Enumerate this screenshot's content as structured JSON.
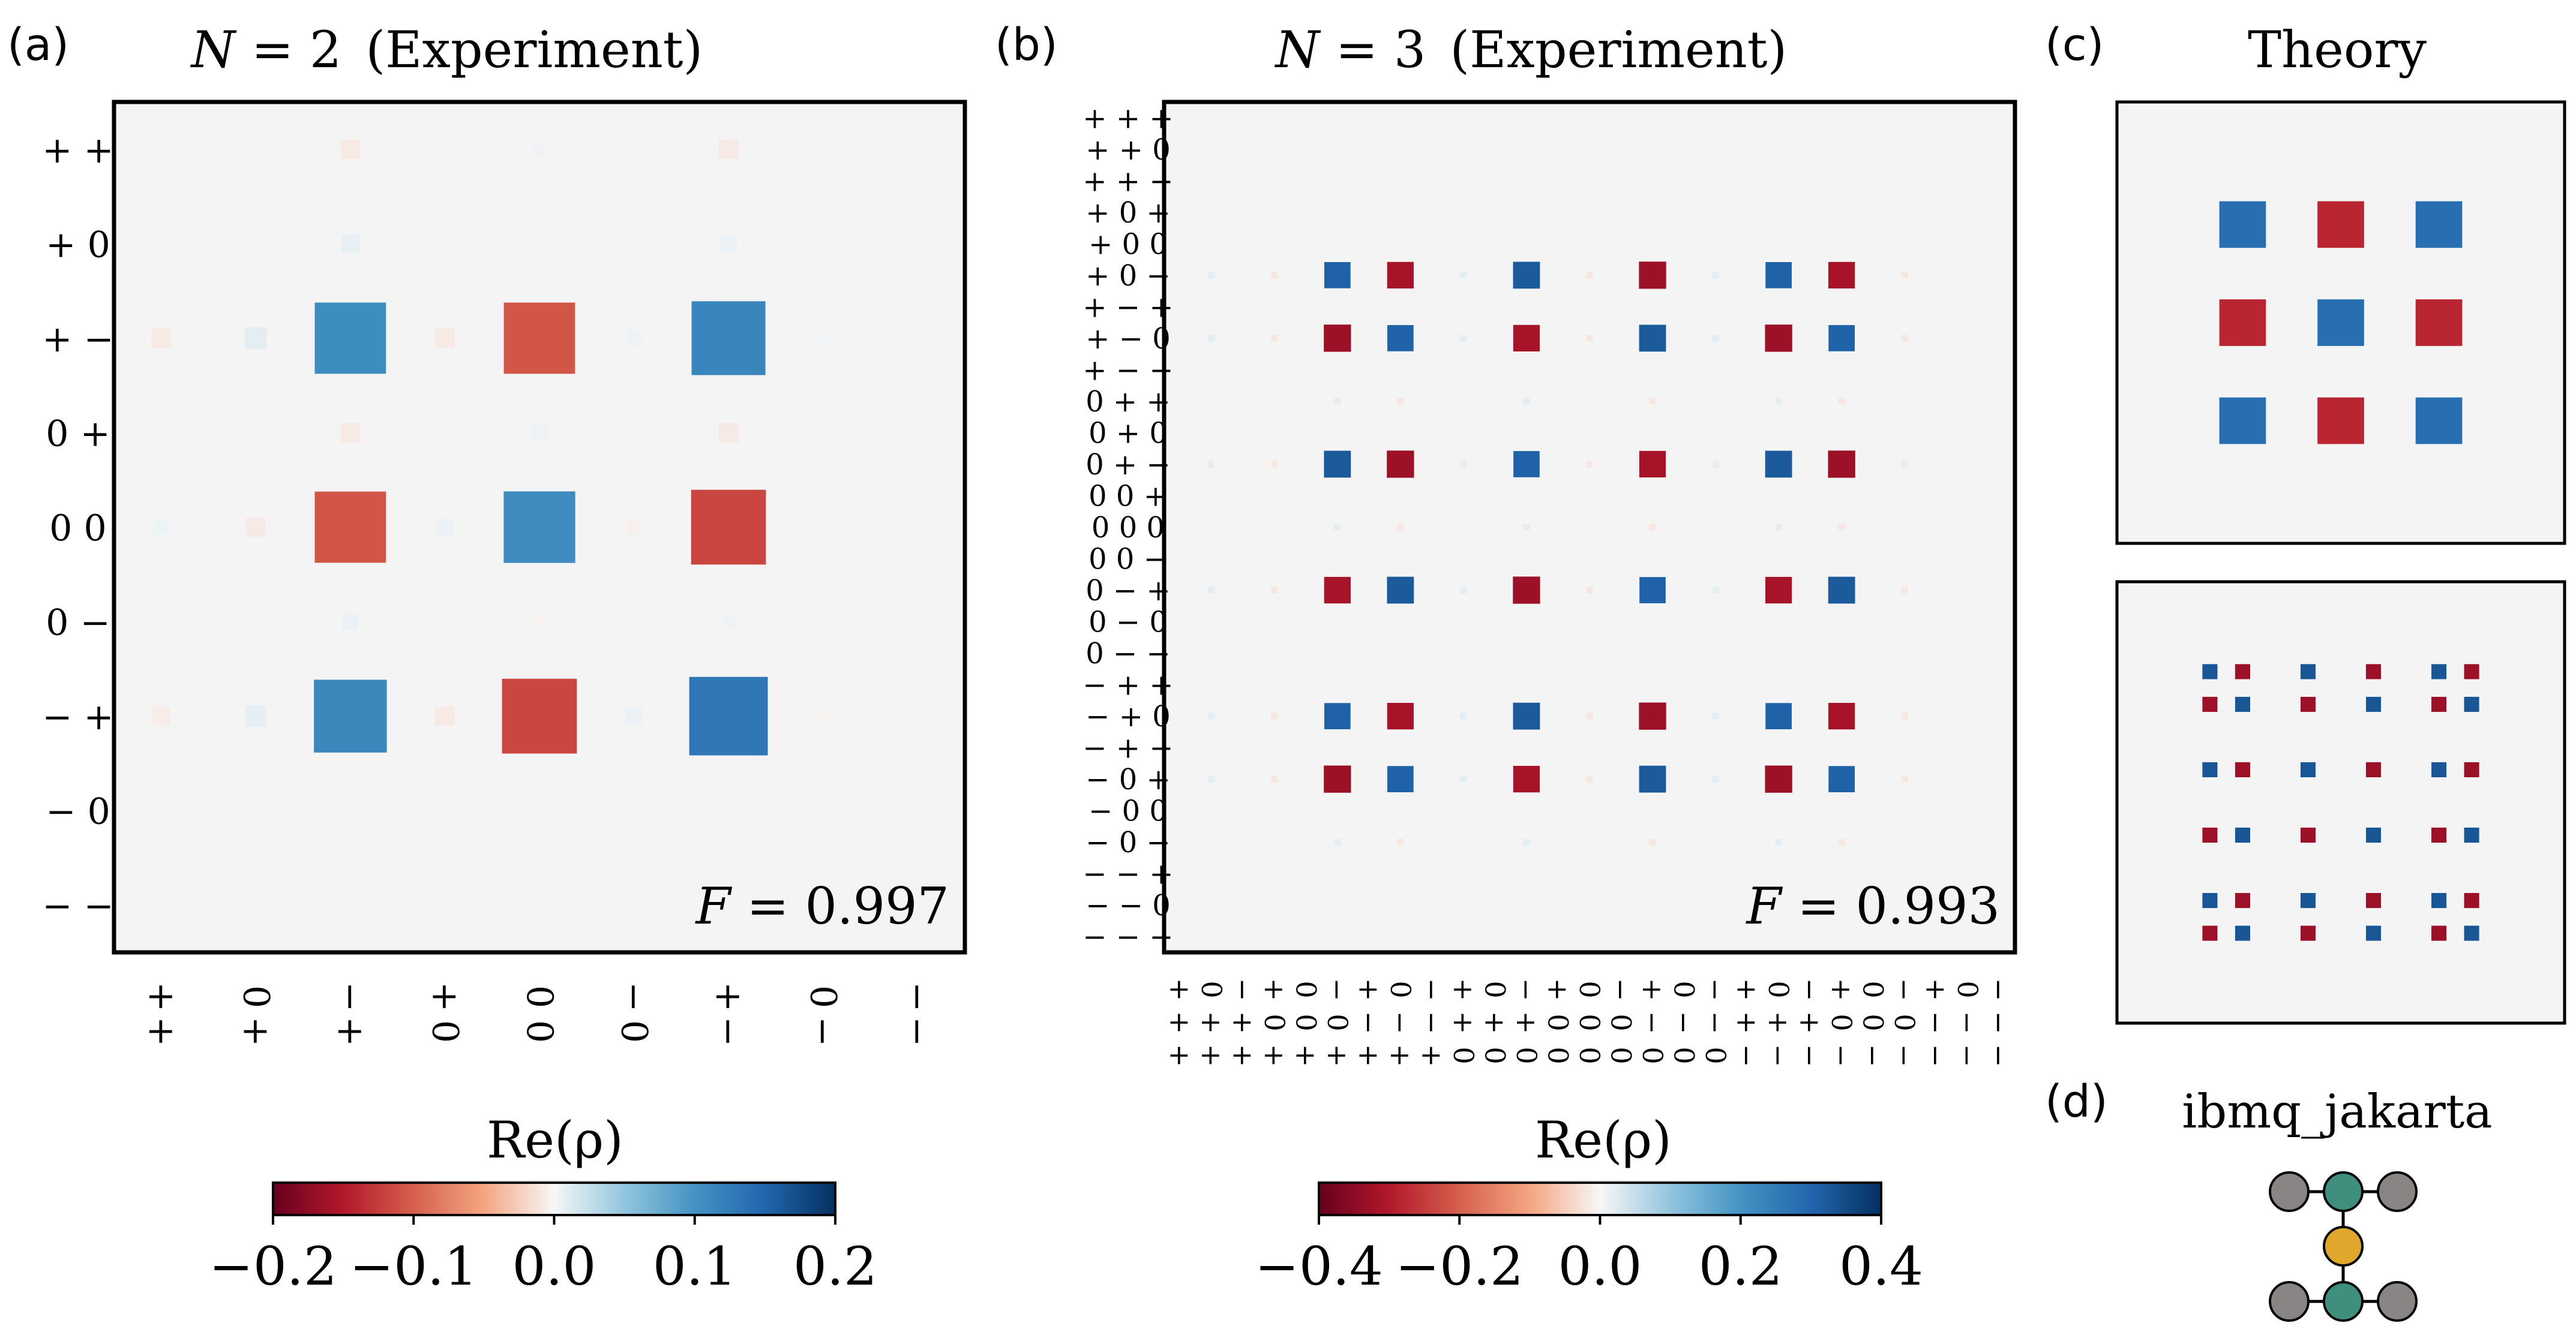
{
  "chart_data": [
    {
      "panel": "(a)",
      "type": "heatmap",
      "title_var": "N",
      "title_eq": " = 2",
      "title_note": "(Experiment)",
      "basis_labels": [
        "+ +",
        "+ 0",
        "+ −",
        "0 +",
        "0 0",
        "0 −",
        "− +",
        "− 0",
        "− −"
      ],
      "x_tick_labels": [
        [
          "+",
          "+"
        ],
        [
          "0",
          "+"
        ],
        [
          "−",
          "+"
        ],
        [
          "+",
          "0"
        ],
        [
          "0",
          "0"
        ],
        [
          "−",
          "0"
        ],
        [
          "+",
          "−"
        ],
        [
          "0",
          "−"
        ],
        [
          "−",
          "−"
        ]
      ],
      "fidelity_var": "F",
      "fidelity_text": " = 0.997",
      "value_range": [
        -0.2,
        0.2
      ],
      "matrix_elements": [
        {
          "row": 2,
          "col": 2,
          "value": 0.107
        },
        {
          "row": 2,
          "col": 4,
          "value": -0.107
        },
        {
          "row": 2,
          "col": 6,
          "value": 0.115
        },
        {
          "row": 4,
          "col": 2,
          "value": -0.107
        },
        {
          "row": 4,
          "col": 4,
          "value": 0.108
        },
        {
          "row": 4,
          "col": 6,
          "value": -0.118
        },
        {
          "row": 6,
          "col": 2,
          "value": 0.112
        },
        {
          "row": 6,
          "col": 4,
          "value": -0.118
        },
        {
          "row": 6,
          "col": 6,
          "value": 0.13
        },
        {
          "row": 0,
          "col": 2,
          "value": -0.008
        },
        {
          "row": 0,
          "col": 4,
          "value": 0.004
        },
        {
          "row": 0,
          "col": 6,
          "value": -0.008
        },
        {
          "row": 1,
          "col": 2,
          "value": 0.007
        },
        {
          "row": 1,
          "col": 6,
          "value": 0.006
        },
        {
          "row": 2,
          "col": 0,
          "value": -0.008
        },
        {
          "row": 2,
          "col": 1,
          "value": 0.01
        },
        {
          "row": 2,
          "col": 3,
          "value": -0.008
        },
        {
          "row": 2,
          "col": 5,
          "value": 0.005
        },
        {
          "row": 2,
          "col": 7,
          "value": 0.003
        },
        {
          "row": 3,
          "col": 2,
          "value": -0.008
        },
        {
          "row": 3,
          "col": 4,
          "value": 0.005
        },
        {
          "row": 3,
          "col": 6,
          "value": -0.008
        },
        {
          "row": 4,
          "col": 0,
          "value": 0.005
        },
        {
          "row": 4,
          "col": 1,
          "value": -0.008
        },
        {
          "row": 4,
          "col": 3,
          "value": 0.006
        },
        {
          "row": 4,
          "col": 5,
          "value": -0.004
        },
        {
          "row": 5,
          "col": 2,
          "value": 0.006
        },
        {
          "row": 5,
          "col": 4,
          "value": -0.003
        },
        {
          "row": 5,
          "col": 6,
          "value": 0.004
        },
        {
          "row": 6,
          "col": 0,
          "value": -0.007
        },
        {
          "row": 6,
          "col": 1,
          "value": 0.009
        },
        {
          "row": 6,
          "col": 3,
          "value": -0.008
        },
        {
          "row": 6,
          "col": 5,
          "value": 0.006
        },
        {
          "row": 6,
          "col": 7,
          "value": -0.003
        }
      ]
    },
    {
      "panel": "(b)",
      "type": "heatmap",
      "title_var": "N",
      "title_eq": " = 3",
      "title_note": "(Experiment)",
      "basis_labels": [
        "+ + +",
        "+ + 0",
        "+ + −",
        "+ 0 +",
        "+ 0 0",
        "+ 0 −",
        "+ − +",
        "+ − 0",
        "+ − −",
        "0 + +",
        "0 + 0",
        "0 + −",
        "0 0 +",
        "0 0 0",
        "0 0 −",
        "0 − +",
        "0 − 0",
        "0 − −",
        "− + +",
        "− + 0",
        "− + −",
        "− 0 +",
        "− 0 0",
        "− 0 −",
        "− − +",
        "− − 0",
        "− − −"
      ],
      "x_tick_rows": [
        "+0−+0−+0−+0−+0−+0−+0−+0−+0−",
        "+++000−−−+++000−−−+++000−−−",
        "+++++++++000000000−−−−−−−−−"
      ],
      "fidelity_var": "F",
      "fidelity_text": " = 0.993",
      "value_range": [
        -0.4,
        0.4
      ],
      "strong_indices": [
        5,
        7,
        11,
        15,
        19,
        21
      ],
      "strong_magnitude": 0.33
    },
    {
      "panel": "(c)",
      "type": "heatmap",
      "title": "Theory",
      "subpanels": [
        {
          "dimension": 9,
          "strong_indices": [
            2,
            4,
            6
          ],
          "value_range": [
            -0.2,
            0.2
          ]
        },
        {
          "dimension": 27,
          "strong_indices": [
            5,
            7,
            11,
            15,
            19,
            21
          ],
          "value_range": [
            -0.4,
            0.4
          ]
        }
      ]
    }
  ],
  "colorbars": [
    {
      "label": "Re(ρ)",
      "ticks": [
        "−0.2",
        "−0.1",
        "0.0",
        "0.1",
        "0.2"
      ],
      "range": [
        -0.2,
        0.2
      ]
    },
    {
      "label": "Re(ρ)",
      "ticks": [
        "−0.4",
        "−0.2",
        "0.0",
        "0.2",
        "0.4"
      ],
      "range": [
        -0.4,
        0.4
      ]
    }
  ],
  "panel_labels": [
    "(a)",
    "(b)",
    "(c)",
    "(d)"
  ],
  "device": {
    "name": "ibmq_jakarta",
    "colors": {
      "outer": "#898585",
      "middle": "#3f8f7f",
      "center": "#e0a72c"
    }
  },
  "colors": {
    "background": "#f4f4f4",
    "positive_strong": "#1c5a9c",
    "negative_strong": "#a8172a"
  }
}
